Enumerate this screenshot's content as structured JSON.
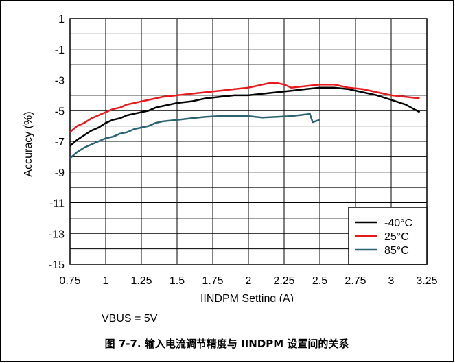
{
  "chart_data": {
    "type": "line",
    "xlabel": "IINDPM Setting (A)",
    "ylabel": "Accuracy (%)",
    "xlim": [
      0.75,
      3.25
    ],
    "ylim": [
      -15,
      1
    ],
    "xticks": [
      0.75,
      1,
      1.25,
      1.5,
      1.75,
      2,
      2.25,
      2.5,
      2.75,
      3,
      3.25
    ],
    "xtick_labels": [
      "0.75",
      "1",
      "1.25",
      "1.5",
      "1.75",
      "2",
      "2.25",
      "2.5",
      "2.75",
      "3",
      "3.25"
    ],
    "yticks": [
      1,
      -1,
      -3,
      -5,
      -7,
      -9,
      -11,
      -13,
      -15
    ],
    "ytick_labels": [
      "1",
      "-1",
      "-3",
      "-5",
      "-7",
      "-9",
      "-11",
      "-13",
      "-15"
    ],
    "grid": true,
    "legend_position": "bottom-right",
    "series": [
      {
        "name": "-40°C",
        "color": "#000000",
        "x": [
          0.75,
          0.8,
          0.85,
          0.9,
          0.95,
          1.0,
          1.05,
          1.1,
          1.15,
          1.2,
          1.25,
          1.3,
          1.35,
          1.4,
          1.5,
          1.6,
          1.7,
          1.8,
          1.9,
          2.0,
          2.1,
          2.2,
          2.3,
          2.4,
          2.5,
          2.6,
          2.7,
          2.8,
          2.9,
          3.0,
          3.1,
          3.2
        ],
        "y": [
          -7.3,
          -6.9,
          -6.6,
          -6.3,
          -6.1,
          -5.8,
          -5.6,
          -5.5,
          -5.3,
          -5.2,
          -5.1,
          -5.0,
          -4.8,
          -4.7,
          -4.5,
          -4.4,
          -4.2,
          -4.1,
          -4.0,
          -4.0,
          -3.9,
          -3.8,
          -3.7,
          -3.6,
          -3.5,
          -3.5,
          -3.6,
          -3.8,
          -4.0,
          -4.3,
          -4.6,
          -5.1
        ]
      },
      {
        "name": "25°C",
        "color": "#e8191d",
        "x": [
          0.75,
          0.8,
          0.85,
          0.9,
          0.95,
          1.0,
          1.05,
          1.1,
          1.15,
          1.2,
          1.25,
          1.3,
          1.35,
          1.4,
          1.5,
          1.6,
          1.7,
          1.8,
          1.9,
          2.0,
          2.05,
          2.1,
          2.15,
          2.2,
          2.25,
          2.3,
          2.4,
          2.5,
          2.6,
          2.65,
          2.7,
          2.8,
          2.9,
          3.0,
          3.1,
          3.2
        ],
        "y": [
          -6.4,
          -6.0,
          -5.8,
          -5.5,
          -5.3,
          -5.1,
          -4.9,
          -4.8,
          -4.6,
          -4.5,
          -4.4,
          -4.3,
          -4.2,
          -4.1,
          -4.0,
          -3.9,
          -3.8,
          -3.7,
          -3.6,
          -3.5,
          -3.4,
          -3.3,
          -3.2,
          -3.2,
          -3.3,
          -3.5,
          -3.4,
          -3.3,
          -3.3,
          -3.4,
          -3.5,
          -3.6,
          -3.8,
          -4.0,
          -4.1,
          -4.2
        ]
      },
      {
        "name": "85°C",
        "color": "#2b6371",
        "x": [
          0.75,
          0.8,
          0.85,
          0.9,
          0.95,
          1.0,
          1.05,
          1.1,
          1.15,
          1.2,
          1.25,
          1.3,
          1.35,
          1.4,
          1.5,
          1.6,
          1.7,
          1.8,
          1.9,
          2.0,
          2.05,
          2.1,
          2.2,
          2.3,
          2.35,
          2.4,
          2.43,
          2.45,
          2.5
        ],
        "y": [
          -8.1,
          -7.7,
          -7.4,
          -7.2,
          -7.0,
          -6.8,
          -6.7,
          -6.5,
          -6.4,
          -6.2,
          -6.1,
          -6.0,
          -5.8,
          -5.7,
          -5.6,
          -5.5,
          -5.4,
          -5.35,
          -5.35,
          -5.35,
          -5.4,
          -5.45,
          -5.4,
          -5.35,
          -5.3,
          -5.25,
          -5.2,
          -5.75,
          -5.6
        ]
      }
    ]
  },
  "note": "VBUS = 5V",
  "caption": "图 7-7. 输入电流调节精度与 IINDPM 设置间的关系"
}
